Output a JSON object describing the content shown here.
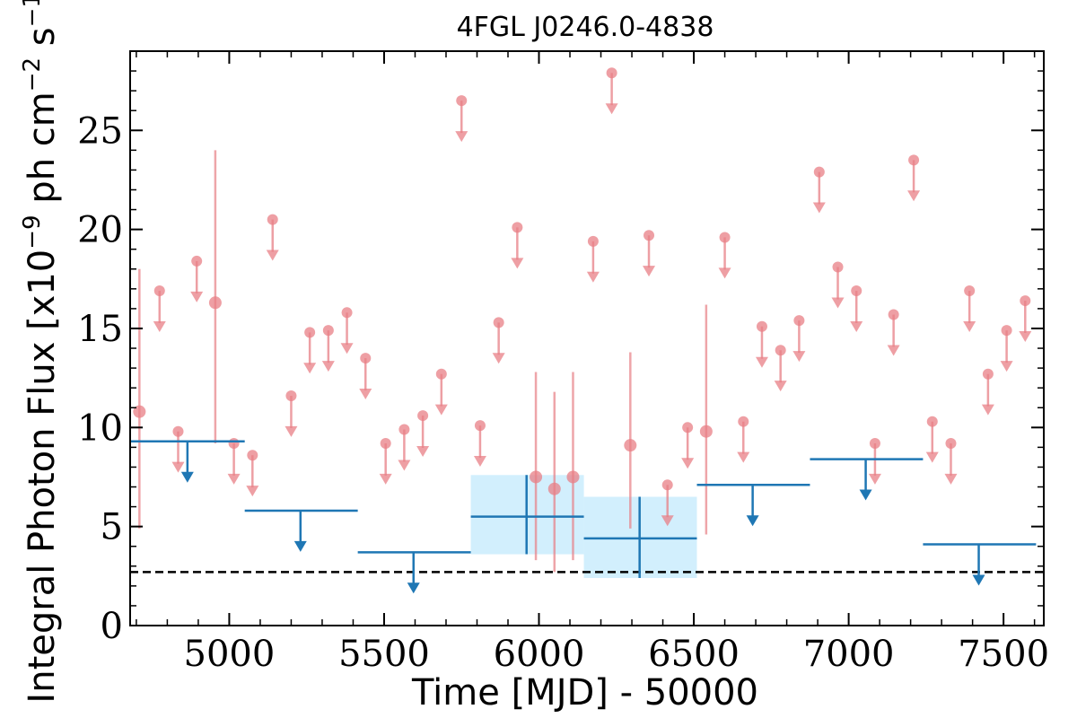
{
  "chart_data": {
    "type": "scatter",
    "title": "4FGL J0246.0-4838",
    "xlabel": "Time [MJD] - 50000",
    "ylabel": {
      "prefix": "Integral Photon Flux [x10",
      "exp1": "−9",
      "mid": " ph cm",
      "exp2": "−2",
      "mid2": " s",
      "exp3": "−1",
      "suffix": "]"
    },
    "xlim": [
      4680,
      7630
    ],
    "ylim": [
      0,
      29
    ],
    "xticks": [
      5000,
      5500,
      6000,
      6500,
      7000,
      7500
    ],
    "yticks": [
      0,
      5,
      10,
      15,
      20,
      25
    ],
    "grid": false,
    "reference_line": {
      "y": 2.7,
      "style": "dashed",
      "color": "#000000"
    },
    "colors": {
      "short": "#e87f86",
      "long": "#1f77b4",
      "band": "#d2effd"
    },
    "series": [
      {
        "bin": "short",
        "upper_limits": [
          {
            "x": 4775,
            "y": 16.9
          },
          {
            "x": 4835,
            "y": 9.8
          },
          {
            "x": 4895,
            "y": 18.4
          },
          {
            "x": 5015,
            "y": 9.2
          },
          {
            "x": 5075,
            "y": 8.6
          },
          {
            "x": 5140,
            "y": 20.5
          },
          {
            "x": 5200,
            "y": 11.6
          },
          {
            "x": 5260,
            "y": 14.8
          },
          {
            "x": 5320,
            "y": 14.9
          },
          {
            "x": 5380,
            "y": 15.8
          },
          {
            "x": 5440,
            "y": 13.5
          },
          {
            "x": 5505,
            "y": 9.2
          },
          {
            "x": 5565,
            "y": 9.9
          },
          {
            "x": 5625,
            "y": 10.6
          },
          {
            "x": 5685,
            "y": 12.7
          },
          {
            "x": 5750,
            "y": 26.5
          },
          {
            "x": 5810,
            "y": 10.1
          },
          {
            "x": 5870,
            "y": 15.3
          },
          {
            "x": 5930,
            "y": 20.1
          },
          {
            "x": 6175,
            "y": 19.4
          },
          {
            "x": 6235,
            "y": 27.9
          },
          {
            "x": 6355,
            "y": 19.7
          },
          {
            "x": 6415,
            "y": 7.1
          },
          {
            "x": 6480,
            "y": 10.0
          },
          {
            "x": 6600,
            "y": 19.6
          },
          {
            "x": 6660,
            "y": 10.3
          },
          {
            "x": 6720,
            "y": 15.1
          },
          {
            "x": 6780,
            "y": 13.9
          },
          {
            "x": 6840,
            "y": 15.4
          },
          {
            "x": 6905,
            "y": 22.9
          },
          {
            "x": 6965,
            "y": 18.1
          },
          {
            "x": 7025,
            "y": 16.9
          },
          {
            "x": 7085,
            "y": 9.2
          },
          {
            "x": 7145,
            "y": 15.7
          },
          {
            "x": 7210,
            "y": 23.5
          },
          {
            "x": 7270,
            "y": 10.3
          },
          {
            "x": 7330,
            "y": 9.2
          },
          {
            "x": 7390,
            "y": 16.9
          },
          {
            "x": 7450,
            "y": 12.7
          },
          {
            "x": 7510,
            "y": 14.9
          },
          {
            "x": 7570,
            "y": 16.4
          }
        ],
        "detections": [
          {
            "x": 4710,
            "y": 10.8,
            "ylow": 4.9,
            "yhigh": 18.0
          },
          {
            "x": 4955,
            "y": 16.3,
            "ylow": 9.2,
            "yhigh": 24.0
          },
          {
            "x": 5990,
            "y": 7.5,
            "ylow": 3.3,
            "yhigh": 12.8
          },
          {
            "x": 6050,
            "y": 6.9,
            "ylow": 2.7,
            "yhigh": 11.8
          },
          {
            "x": 6110,
            "y": 7.5,
            "ylow": 3.3,
            "yhigh": 12.8
          },
          {
            "x": 6295,
            "y": 9.1,
            "ylow": 4.9,
            "yhigh": 13.8
          },
          {
            "x": 6540,
            "y": 9.8,
            "ylow": 4.6,
            "yhigh": 16.2
          }
        ]
      },
      {
        "bin": "long",
        "upper_limits": [
          {
            "x": 4865,
            "y": 9.3,
            "xlow": 4680,
            "xhigh": 5050
          },
          {
            "x": 5230,
            "y": 5.8,
            "xlow": 5050,
            "xhigh": 5415
          },
          {
            "x": 5595,
            "y": 3.7,
            "xlow": 5415,
            "xhigh": 5780
          },
          {
            "x": 6690,
            "y": 7.1,
            "xlow": 6510,
            "xhigh": 6875
          },
          {
            "x": 7055,
            "y": 8.4,
            "xlow": 6875,
            "xhigh": 7240
          },
          {
            "x": 7420,
            "y": 4.1,
            "xlow": 7240,
            "xhigh": 7605
          }
        ],
        "detections": [
          {
            "x": 5960,
            "y": 5.5,
            "xlow": 5780,
            "xhigh": 6145,
            "ylow": 3.6,
            "yhigh": 7.6
          },
          {
            "x": 6325,
            "y": 4.4,
            "xlow": 6145,
            "xhigh": 6510,
            "ylow": 2.4,
            "yhigh": 6.5
          }
        ]
      }
    ]
  }
}
